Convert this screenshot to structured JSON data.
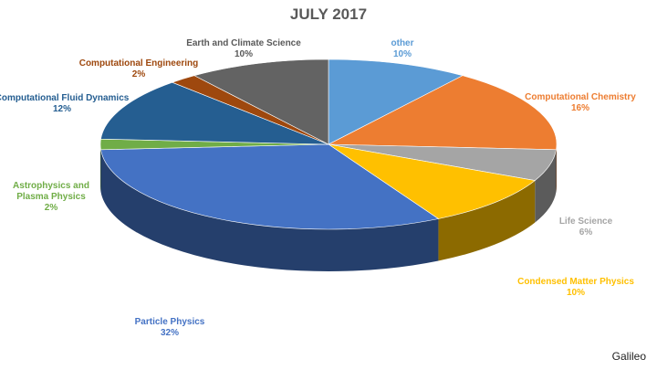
{
  "watermark": "Galileo",
  "chart_data": {
    "type": "pie",
    "title": "JULY 2017",
    "slices": [
      {
        "label": "other",
        "value": 10,
        "pct": "10%",
        "color": "#5B9BD5"
      },
      {
        "label": "Computational Chemistry",
        "value": 16,
        "pct": "16%",
        "color": "#ED7D31"
      },
      {
        "label": "Life Science",
        "value": 6,
        "pct": "6%",
        "color": "#A5A5A5"
      },
      {
        "label": "Condensed Matter Physics",
        "value": 10,
        "pct": "10%",
        "color": "#FFC000"
      },
      {
        "label": "Particle Physics",
        "value": 32,
        "pct": "32%",
        "color": "#4472C4"
      },
      {
        "label": "Astrophysics and Plasma Physics",
        "value": 2,
        "pct": "2%",
        "color": "#70AD47"
      },
      {
        "label": "Computational Fluid Dynamics",
        "value": 12,
        "pct": "12%",
        "color": "#255E91"
      },
      {
        "label": "Computational Engineering",
        "value": 2,
        "pct": "2%",
        "color": "#9E480E"
      },
      {
        "label": "Earth and Climate Science",
        "value": 10,
        "pct": "10%",
        "color": "#636363"
      }
    ]
  }
}
